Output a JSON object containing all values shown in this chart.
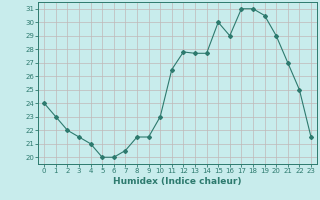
{
  "x": [
    0,
    1,
    2,
    3,
    4,
    5,
    6,
    7,
    8,
    9,
    10,
    11,
    12,
    13,
    14,
    15,
    16,
    17,
    18,
    19,
    20,
    21,
    22,
    23
  ],
  "y": [
    24,
    23,
    22,
    21.5,
    21,
    20,
    20,
    20.5,
    21.5,
    21.5,
    23,
    26.5,
    27.8,
    27.7,
    27.7,
    30,
    29,
    31,
    31,
    30.5,
    29,
    27,
    25,
    21.5
  ],
  "line_color": "#2d7a6e",
  "marker": "D",
  "markersize": 2.0,
  "linewidth": 0.8,
  "bg_color": "#c8ecec",
  "grid_color": "#c0b8b8",
  "xlabel": "Humidex (Indice chaleur)",
  "xlim": [
    -0.5,
    23.5
  ],
  "ylim": [
    19.5,
    31.5
  ],
  "yticks": [
    20,
    21,
    22,
    23,
    24,
    25,
    26,
    27,
    28,
    29,
    30,
    31
  ],
  "xticks": [
    0,
    1,
    2,
    3,
    4,
    5,
    6,
    7,
    8,
    9,
    10,
    11,
    12,
    13,
    14,
    15,
    16,
    17,
    18,
    19,
    20,
    21,
    22,
    23
  ],
  "tick_color": "#2d7a6e",
  "tick_fontsize": 5.0,
  "xlabel_fontsize": 6.5
}
